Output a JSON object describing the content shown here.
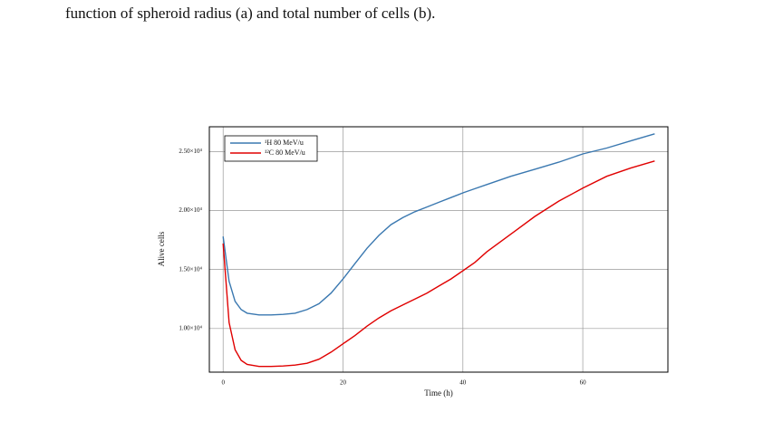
{
  "caption": "function of spheroid radius (a) and total number of cells (b).",
  "chart_data": {
    "type": "line",
    "xlabel": "Time (h)",
    "ylabel": "Alive cells",
    "x": [
      0,
      1,
      2,
      3,
      4,
      6,
      8,
      10,
      12,
      14,
      16,
      18,
      20,
      22,
      24,
      26,
      28,
      30,
      32,
      34,
      36,
      38,
      40,
      42,
      44,
      48,
      52,
      56,
      60,
      64,
      68,
      72
    ],
    "series": [
      {
        "name": "¹H 80 MeV/u",
        "color": "#3a78b0",
        "values": [
          17800,
          14000,
          12300,
          11600,
          11300,
          11150,
          11150,
          11200,
          11300,
          11600,
          12100,
          13000,
          14200,
          15500,
          16800,
          17900,
          18800,
          19400,
          19900,
          20300,
          20700,
          21100,
          21500,
          21850,
          22200,
          22900,
          23500,
          24100,
          24800,
          25300,
          25900,
          26500
        ]
      },
      {
        "name": "¹²C 80 MeV/u",
        "color": "#e00000",
        "values": [
          17200,
          10500,
          8200,
          7300,
          6950,
          6780,
          6780,
          6820,
          6900,
          7050,
          7400,
          8000,
          8700,
          9400,
          10200,
          10900,
          11500,
          12000,
          12500,
          13000,
          13600,
          14200,
          14900,
          15600,
          16500,
          18000,
          19500,
          20800,
          21900,
          22900,
          23600,
          24200
        ]
      }
    ],
    "xlim": [
      -2.3,
      74.2
    ],
    "xticks": [
      0,
      20,
      40,
      60
    ],
    "ylim": [
      6300,
      27100
    ],
    "yticks": [
      {
        "value": 10000,
        "label": "1.00×10⁴"
      },
      {
        "value": 15000,
        "label": "1.50×10⁴"
      },
      {
        "value": 20000,
        "label": "2.00×10⁴"
      },
      {
        "value": 25000,
        "label": "2.50×10⁴"
      }
    ],
    "grid": true,
    "legend": "upper left"
  }
}
